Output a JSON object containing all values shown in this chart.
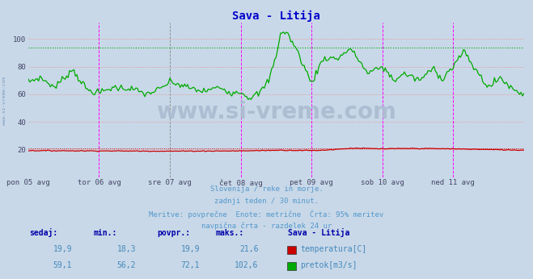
{
  "title": "Sava - Litija",
  "title_color": "#0000cc",
  "bg_color": "#c8d8e8",
  "plot_bg_color": "#c8d8e8",
  "grid_h_color": "#ee8888",
  "grid_v_color": "#aaaaaa",
  "x_tick_labels": [
    "pon 05 avg",
    "tor 06 avg",
    "sre 07 avg",
    "čet 08 avg",
    "pet 09 avg",
    "sob 10 avg",
    "ned 11 avg"
  ],
  "y_ticks": [
    20,
    40,
    60,
    80,
    100
  ],
  "ylim": [
    0,
    112
  ],
  "xlim": [
    0,
    336
  ],
  "temp_color": "#cc0000",
  "flow_color": "#00aa00",
  "hline_95_flow": 93.5,
  "hline_95_temp": 21.0,
  "vline_color": "#ff00ff",
  "vline_dashed_color": "#888888",
  "subtitle_lines": [
    "Slovenija / reke in morje.",
    "zadnji teden / 30 minut.",
    "Meritve: povprečne  Enote: metrične  Črta: 95% meritev",
    "navpična črta - razdelek 24 ur"
  ],
  "subtitle_color": "#5599cc",
  "table_headers": [
    "sedaj:",
    "min.:",
    "povpr.:",
    "maks.:",
    "Sava - Litija"
  ],
  "table_header_color": "#0000aa",
  "table_values_temp": [
    "19,9",
    "18,3",
    "19,9",
    "21,6"
  ],
  "table_values_flow": [
    "59,1",
    "56,2",
    "72,1",
    "102,6"
  ],
  "table_value_color": "#4488bb",
  "legend_items": [
    "temperatura[C]",
    "pretok[m3/s]"
  ],
  "legend_colors": [
    "#cc0000",
    "#00aa00"
  ],
  "watermark": "www.si-vreme.com",
  "watermark_color": "#aabbd0",
  "left_label": "www.si-vreme.com",
  "left_label_color": "#7799bb",
  "n_points": 337,
  "flow_keypoints_x": [
    0,
    8,
    18,
    30,
    40,
    48,
    58,
    70,
    80,
    90,
    96,
    108,
    118,
    130,
    138,
    144,
    150,
    157,
    163,
    168,
    171,
    175,
    182,
    192,
    200,
    210,
    218,
    224,
    230,
    240,
    248,
    255,
    265,
    275,
    280,
    288,
    295,
    303,
    312,
    320,
    328,
    336
  ],
  "flow_keypoints_y": [
    69,
    72,
    65,
    78,
    63,
    61,
    65,
    64,
    60,
    64,
    69,
    65,
    62,
    65,
    61,
    62,
    57,
    61,
    70,
    88,
    104,
    105,
    92,
    68,
    86,
    86,
    93,
    85,
    75,
    80,
    70,
    75,
    70,
    79,
    71,
    80,
    91,
    78,
    65,
    72,
    64,
    60
  ],
  "temp_keypoints_x": [
    0,
    48,
    96,
    144,
    170,
    192,
    200,
    220,
    240,
    260,
    288,
    336
  ],
  "temp_keypoints_y": [
    19.2,
    19.0,
    18.8,
    19.0,
    19.5,
    19.3,
    19.5,
    21.0,
    20.5,
    20.8,
    20.5,
    19.5
  ]
}
